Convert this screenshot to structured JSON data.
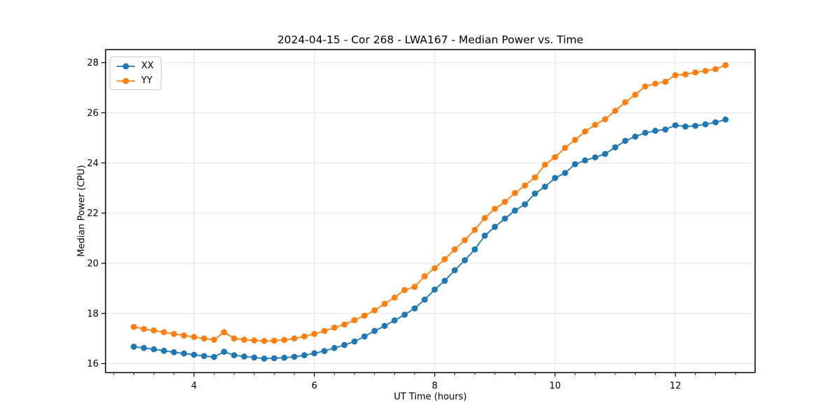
{
  "chart_data": {
    "type": "line",
    "title": "2024-04-15 - Cor 268 - LWA167 - Median Power vs. Time",
    "xlabel": "UT Time (hours)",
    "ylabel": "Median Power (CPU)",
    "xlim": [
      2.53,
      13.325
    ],
    "ylim": [
      15.64,
      28.52
    ],
    "xticks": [
      4,
      6,
      8,
      10,
      12
    ],
    "yticks": [
      16,
      18,
      20,
      22,
      24,
      26,
      28
    ],
    "x_minor_tick_step": 0.33333,
    "grid": true,
    "grid_color": "#e4e4e4",
    "legend_position": "upper left",
    "marker": "o",
    "x": [
      3.0,
      3.167,
      3.333,
      3.5,
      3.667,
      3.833,
      4.0,
      4.167,
      4.333,
      4.5,
      4.667,
      4.833,
      5.0,
      5.167,
      5.333,
      5.5,
      5.667,
      5.833,
      6.0,
      6.167,
      6.333,
      6.5,
      6.667,
      6.833,
      7.0,
      7.167,
      7.333,
      7.5,
      7.667,
      7.833,
      8.0,
      8.167,
      8.333,
      8.5,
      8.667,
      8.833,
      9.0,
      9.167,
      9.333,
      9.5,
      9.667,
      9.833,
      10.0,
      10.167,
      10.333,
      10.5,
      10.667,
      10.833,
      11.0,
      11.167,
      11.333,
      11.5,
      11.667,
      11.833,
      12.0,
      12.167,
      12.333,
      12.5,
      12.667,
      12.833
    ],
    "series": [
      {
        "name": "XX",
        "color": "#1f77b4",
        "values": [
          16.67,
          16.62,
          16.57,
          16.51,
          16.45,
          16.4,
          16.35,
          16.3,
          16.26,
          16.47,
          16.33,
          16.28,
          16.24,
          16.2,
          16.21,
          16.23,
          16.27,
          16.33,
          16.41,
          16.5,
          16.62,
          16.74,
          16.88,
          17.08,
          17.3,
          17.5,
          17.72,
          17.95,
          18.2,
          18.55,
          18.95,
          19.3,
          19.72,
          20.12,
          20.55,
          21.1,
          21.45,
          21.78,
          22.1,
          22.35,
          22.78,
          23.05,
          23.4,
          23.6,
          23.95,
          24.1,
          24.22,
          24.36,
          24.62,
          24.88,
          25.05,
          25.2,
          25.28,
          25.33,
          25.5,
          25.45,
          25.48,
          25.54,
          25.62,
          25.73
        ]
      },
      {
        "name": "YY",
        "color": "#ff7f0e",
        "values": [
          17.46,
          17.38,
          17.32,
          17.25,
          17.18,
          17.12,
          17.06,
          17.0,
          16.95,
          17.25,
          17.0,
          16.95,
          16.92,
          16.9,
          16.91,
          16.94,
          17.0,
          17.08,
          17.18,
          17.3,
          17.43,
          17.56,
          17.73,
          17.91,
          18.12,
          18.38,
          18.63,
          18.93,
          19.06,
          19.48,
          19.8,
          20.16,
          20.55,
          20.92,
          21.33,
          21.8,
          22.17,
          22.45,
          22.8,
          23.1,
          23.42,
          23.93,
          24.23,
          24.6,
          24.92,
          25.25,
          25.52,
          25.74,
          26.08,
          26.42,
          26.72,
          27.05,
          27.16,
          27.24,
          27.5,
          27.53,
          27.61,
          27.67,
          27.74,
          27.9
        ]
      }
    ]
  }
}
